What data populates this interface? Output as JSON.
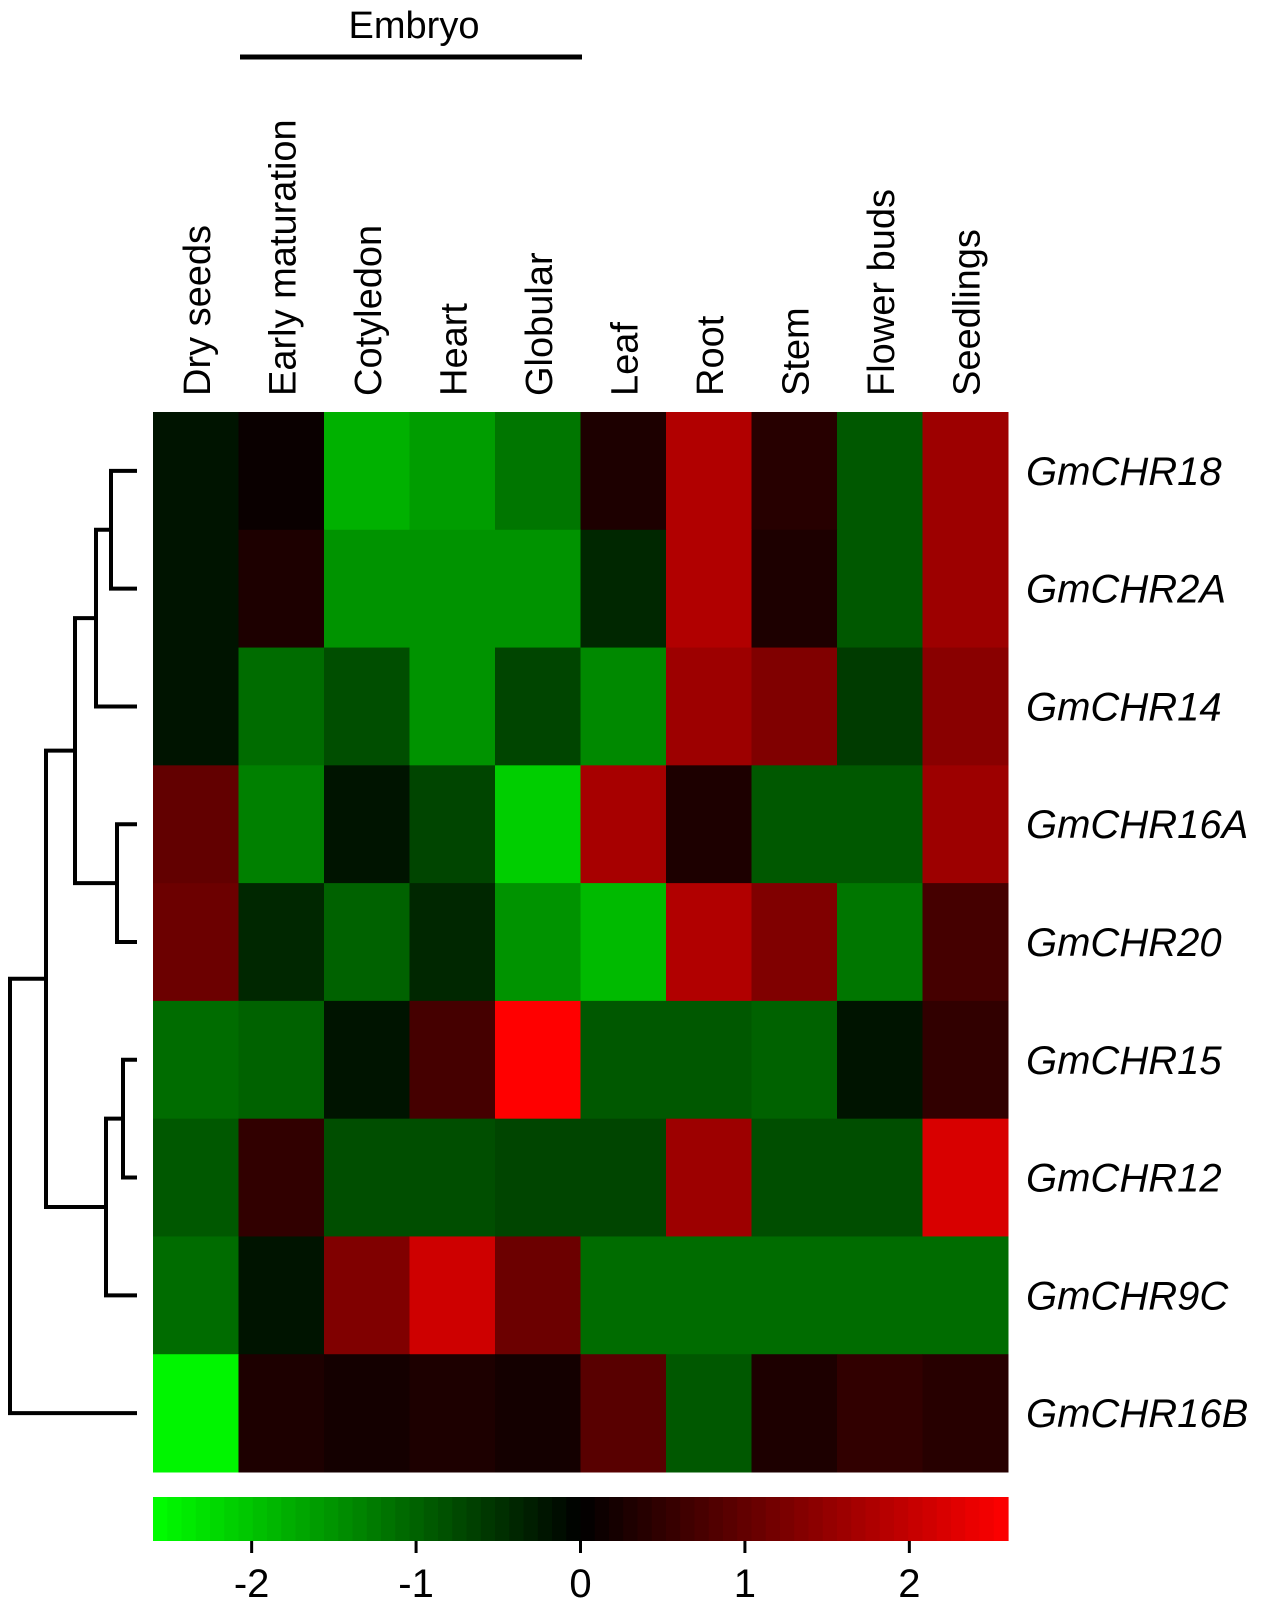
{
  "chart_data": {
    "type": "heatmap",
    "group_label": "Embryo",
    "columns": [
      "Dry seeds",
      "Early maturation",
      "Cotyledon",
      "Heart",
      "Globular",
      "Leaf",
      "Root",
      "Stem",
      "Flower buds",
      "Seedlings"
    ],
    "rows": [
      "GmCHR18",
      "GmCHR2A",
      "GmCHR14",
      "GmCHR16A",
      "GmCHR20",
      "GmCHR15",
      "GmCHR12",
      "GmCHR9C",
      "GmCHR16B"
    ],
    "values": [
      [
        -0.2,
        0.1,
        -1.8,
        -1.6,
        -1.2,
        0.3,
        1.8,
        0.4,
        -0.9,
        1.6
      ],
      [
        -0.2,
        0.3,
        -1.5,
        -1.5,
        -1.5,
        -0.4,
        1.8,
        0.3,
        -0.9,
        1.6
      ],
      [
        -0.2,
        -1.1,
        -0.8,
        -1.5,
        -0.7,
        -1.4,
        1.6,
        1.3,
        -0.6,
        1.4
      ],
      [
        1.0,
        -1.3,
        -0.2,
        -0.7,
        -2.1,
        1.7,
        0.3,
        -0.9,
        -0.9,
        1.6
      ],
      [
        1.1,
        -0.4,
        -1.0,
        -0.4,
        -1.5,
        -1.9,
        1.8,
        1.3,
        -1.2,
        0.7
      ],
      [
        -1.1,
        -1.0,
        -0.2,
        0.7,
        2.6,
        -0.9,
        -0.9,
        -1.0,
        -0.2,
        0.5
      ],
      [
        -0.9,
        0.5,
        -0.8,
        -0.8,
        -0.7,
        -0.7,
        1.6,
        -0.8,
        -0.8,
        2.2
      ],
      [
        -1.1,
        -0.2,
        1.3,
        2.1,
        1.1,
        -1.1,
        -1.1,
        -1.1,
        -1.1,
        -1.1
      ],
      [
        -2.5,
        0.3,
        0.2,
        0.3,
        0.2,
        0.9,
        -0.9,
        0.3,
        0.5,
        0.4
      ]
    ],
    "color_scale": {
      "min": -2.6,
      "mid": 0,
      "max": 2.6,
      "low_color": "#00ff00",
      "mid_color": "#000000",
      "high_color": "#ff0000",
      "ticks": [
        -2,
        -1,
        0,
        1,
        2
      ],
      "tick_labels": [
        "-2",
        "-1",
        "0",
        "1",
        "2"
      ]
    },
    "row_dendrogram": true,
    "legend_placement": "bottom"
  }
}
